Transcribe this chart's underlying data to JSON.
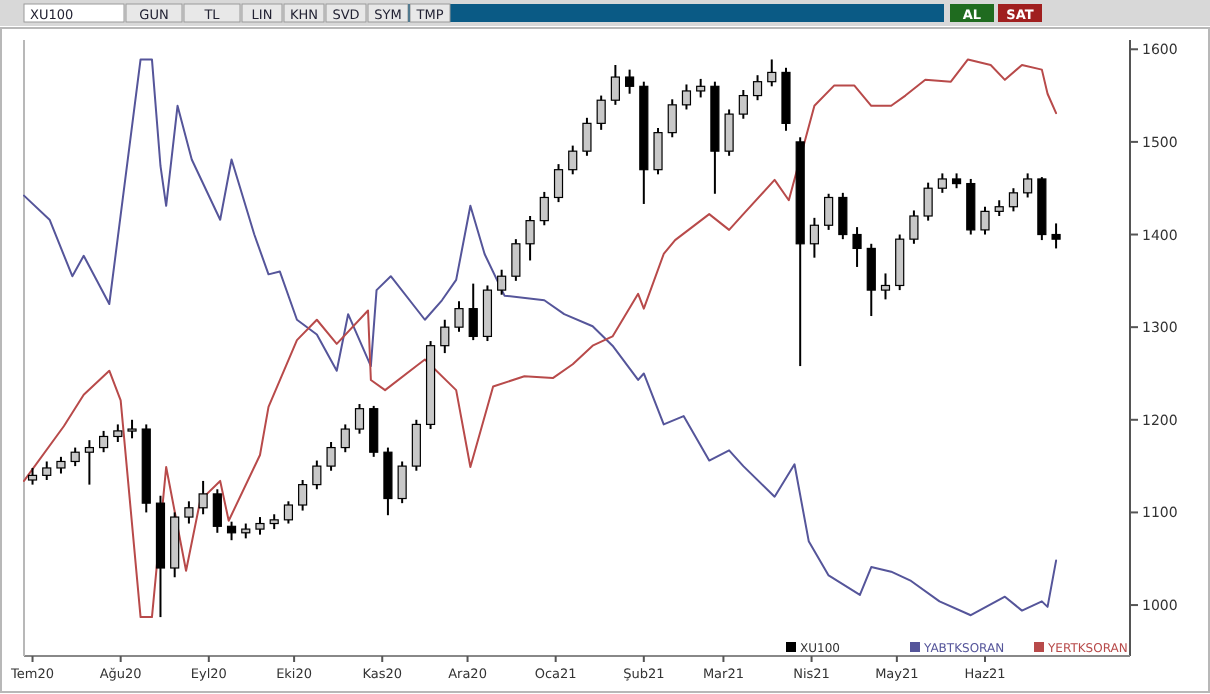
{
  "chart_data": {
    "type": "candlestick",
    "legend": "bottom",
    "marker": "none",
    "line_style": "solid",
    "annotations": [
      "XU100",
      "GUN",
      "TL",
      "LIN",
      "KHN",
      "SVD",
      "SYM",
      "TMP",
      "AL",
      "SAT"
    ],
    "xlim": [
      "2020-06-28",
      "2021-07-22"
    ],
    "xticks": [
      {
        "value": "2020-07-01",
        "label": "Tem20"
      },
      {
        "value": "2020-08-01",
        "label": "Ağu20"
      },
      {
        "value": "2020-09-01",
        "label": "Eyl20"
      },
      {
        "value": "2020-10-01",
        "label": "Eki20"
      },
      {
        "value": "2020-11-01",
        "label": "Kas20"
      },
      {
        "value": "2020-12-01",
        "label": "Ara20"
      },
      {
        "value": "2021-01-01",
        "label": "Oca21"
      },
      {
        "value": "2021-02-01",
        "label": "Şub21"
      },
      {
        "value": "2021-03-01",
        "label": "Mar21"
      },
      {
        "value": "2021-04-01",
        "label": "Nis21"
      },
      {
        "value": "2021-05-01",
        "label": "May21"
      },
      {
        "value": "2021-06-01",
        "label": "Haz21"
      }
    ],
    "ylim": [
      945,
      1610
    ],
    "yticks": [
      1000,
      1100,
      1200,
      1300,
      1400,
      1500,
      1600
    ],
    "series": [
      {
        "name": "XU100",
        "color": "#000000",
        "x": [
          "2020-07-01",
          "2020-07-06",
          "2020-07-11",
          "2020-07-16",
          "2020-07-21",
          "2020-07-26",
          "2020-07-31",
          "2020-08-05",
          "2020-08-10",
          "2020-08-15",
          "2020-08-20",
          "2020-08-25",
          "2020-08-30",
          "2020-09-04",
          "2020-09-09",
          "2020-09-14",
          "2020-09-19",
          "2020-09-24",
          "2020-09-29",
          "2020-10-04",
          "2020-10-09",
          "2020-10-14",
          "2020-10-19",
          "2020-10-24",
          "2020-10-29",
          "2020-11-03",
          "2020-11-08",
          "2020-11-13",
          "2020-11-18",
          "2020-11-23",
          "2020-11-28",
          "2020-12-03",
          "2020-12-08",
          "2020-12-13",
          "2020-12-18",
          "2020-12-23",
          "2020-12-28",
          "2021-01-02",
          "2021-01-07",
          "2021-01-12",
          "2021-01-17",
          "2021-01-22",
          "2021-01-27",
          "2021-02-01",
          "2021-02-06",
          "2021-02-11",
          "2021-02-16",
          "2021-02-21",
          "2021-02-26",
          "2021-03-03",
          "2021-03-08",
          "2021-03-13",
          "2021-03-18",
          "2021-03-23",
          "2021-03-28",
          "2021-04-02",
          "2021-04-07",
          "2021-04-12",
          "2021-04-17",
          "2021-04-22",
          "2021-04-27",
          "2021-05-02",
          "2021-05-07",
          "2021-05-12",
          "2021-05-17",
          "2021-05-22",
          "2021-05-27",
          "2021-06-01",
          "2021-06-06",
          "2021-06-11",
          "2021-06-16",
          "2021-06-21",
          "2021-06-26"
        ],
        "ohlc": [
          [
            1135,
            1148,
            1130,
            1140
          ],
          [
            1140,
            1155,
            1135,
            1148
          ],
          [
            1148,
            1160,
            1142,
            1155
          ],
          [
            1155,
            1170,
            1150,
            1165
          ],
          [
            1165,
            1178,
            1130,
            1170
          ],
          [
            1170,
            1188,
            1165,
            1182
          ],
          [
            1182,
            1195,
            1176,
            1188
          ],
          [
            1188,
            1200,
            1180,
            1190
          ],
          [
            1190,
            1195,
            1100,
            1110
          ],
          [
            1110,
            1118,
            987,
            1040
          ],
          [
            1040,
            1100,
            1030,
            1095
          ],
          [
            1095,
            1112,
            1088,
            1105
          ],
          [
            1105,
            1134,
            1098,
            1120
          ],
          [
            1120,
            1125,
            1078,
            1085
          ],
          [
            1085,
            1090,
            1070,
            1078
          ],
          [
            1078,
            1088,
            1072,
            1082
          ],
          [
            1082,
            1095,
            1076,
            1088
          ],
          [
            1088,
            1098,
            1082,
            1092
          ],
          [
            1092,
            1112,
            1088,
            1108
          ],
          [
            1108,
            1135,
            1102,
            1130
          ],
          [
            1130,
            1156,
            1125,
            1150
          ],
          [
            1150,
            1176,
            1145,
            1170
          ],
          [
            1170,
            1195,
            1165,
            1190
          ],
          [
            1190,
            1217,
            1185,
            1212
          ],
          [
            1212,
            1215,
            1160,
            1165
          ],
          [
            1165,
            1170,
            1097,
            1115
          ],
          [
            1115,
            1155,
            1110,
            1150
          ],
          [
            1150,
            1200,
            1145,
            1195
          ],
          [
            1195,
            1285,
            1190,
            1280
          ],
          [
            1280,
            1308,
            1272,
            1300
          ],
          [
            1300,
            1328,
            1295,
            1320
          ],
          [
            1320,
            1347,
            1286,
            1290
          ],
          [
            1290,
            1345,
            1285,
            1340
          ],
          [
            1340,
            1362,
            1335,
            1355
          ],
          [
            1355,
            1395,
            1350,
            1390
          ],
          [
            1390,
            1420,
            1372,
            1415
          ],
          [
            1415,
            1446,
            1410,
            1440
          ],
          [
            1440,
            1476,
            1435,
            1470
          ],
          [
            1470,
            1496,
            1465,
            1490
          ],
          [
            1490,
            1526,
            1485,
            1520
          ],
          [
            1520,
            1550,
            1513,
            1545
          ],
          [
            1545,
            1583,
            1540,
            1570
          ],
          [
            1570,
            1578,
            1552,
            1560
          ],
          [
            1560,
            1565,
            1433,
            1470
          ],
          [
            1470,
            1515,
            1465,
            1510
          ],
          [
            1510,
            1546,
            1505,
            1540
          ],
          [
            1540,
            1562,
            1535,
            1555
          ],
          [
            1555,
            1568,
            1548,
            1560
          ],
          [
            1560,
            1565,
            1444,
            1490
          ],
          [
            1490,
            1535,
            1485,
            1530
          ],
          [
            1530,
            1556,
            1525,
            1550
          ],
          [
            1550,
            1572,
            1545,
            1565
          ],
          [
            1565,
            1589,
            1560,
            1575
          ],
          [
            1575,
            1580,
            1512,
            1520
          ],
          [
            1500,
            1505,
            1258,
            1390
          ],
          [
            1390,
            1418,
            1375,
            1410
          ],
          [
            1410,
            1444,
            1405,
            1440
          ],
          [
            1440,
            1445,
            1395,
            1400
          ],
          [
            1400,
            1408,
            1365,
            1385
          ],
          [
            1385,
            1390,
            1312,
            1340
          ],
          [
            1340,
            1358,
            1330,
            1345
          ],
          [
            1345,
            1400,
            1340,
            1395
          ],
          [
            1395,
            1426,
            1390,
            1420
          ],
          [
            1420,
            1456,
            1415,
            1450
          ],
          [
            1450,
            1466,
            1445,
            1460
          ],
          [
            1460,
            1466,
            1450,
            1455
          ],
          [
            1455,
            1460,
            1400,
            1405
          ],
          [
            1405,
            1430,
            1400,
            1425
          ],
          [
            1425,
            1437,
            1420,
            1430
          ],
          [
            1430,
            1450,
            1425,
            1445
          ],
          [
            1445,
            1466,
            1440,
            1460
          ],
          [
            1460,
            1462,
            1394,
            1400
          ],
          [
            1400,
            1412,
            1385,
            1395
          ]
        ]
      },
      {
        "name": "YABTKSORAN",
        "type": "line",
        "color": "#55559a",
        "x": [
          "2020-06-28",
          "2020-07-07",
          "2020-07-15",
          "2020-07-19",
          "2020-07-28",
          "2020-08-08",
          "2020-08-12",
          "2020-08-15",
          "2020-08-17",
          "2020-08-21",
          "2020-08-26",
          "2020-09-05",
          "2020-09-09",
          "2020-09-17",
          "2020-09-22",
          "2020-09-26",
          "2020-10-02",
          "2020-10-09",
          "2020-10-16",
          "2020-10-20",
          "2020-10-28",
          "2020-10-30",
          "2020-11-04",
          "2020-11-16",
          "2020-11-22",
          "2020-11-27",
          "2020-12-02",
          "2020-12-07",
          "2020-12-14",
          "2020-12-28",
          "2021-01-04",
          "2021-01-14",
          "2021-01-21",
          "2021-01-30",
          "2021-02-01",
          "2021-02-08",
          "2021-02-15",
          "2021-02-24",
          "2021-03-03",
          "2021-03-08",
          "2021-03-19",
          "2021-03-26",
          "2021-03-31",
          "2021-04-07",
          "2021-04-18",
          "2021-04-22",
          "2021-04-29",
          "2021-05-06",
          "2021-05-16",
          "2021-05-27",
          "2021-06-08",
          "2021-06-14",
          "2021-06-21",
          "2021-06-23",
          "2021-06-26"
        ],
        "values": [
          1442,
          1416,
          1355,
          1377,
          1325,
          1589,
          1589,
          1474,
          1431,
          1539,
          1481,
          1416,
          1481,
          1400,
          1357,
          1360,
          1308,
          1292,
          1253,
          1314,
          1258,
          1340,
          1355,
          1308,
          1329,
          1351,
          1431,
          1379,
          1334,
          1329,
          1314,
          1301,
          1280,
          1243,
          1250,
          1195,
          1204,
          1156,
          1167,
          1150,
          1117,
          1152,
          1069,
          1032,
          1011,
          1041,
          1036,
          1026,
          1004,
          989,
          1009,
          994,
          1004,
          998,
          1048
        ]
      },
      {
        "name": "YERTKSORAN",
        "type": "line",
        "color": "#b84a4a",
        "x": [
          "2020-06-28",
          "2020-07-12",
          "2020-07-19",
          "2020-07-28",
          "2020-08-01",
          "2020-08-08",
          "2020-08-12",
          "2020-08-17",
          "2020-08-24",
          "2020-08-29",
          "2020-09-05",
          "2020-09-08",
          "2020-09-19",
          "2020-09-22",
          "2020-10-02",
          "2020-10-09",
          "2020-10-16",
          "2020-10-27",
          "2020-10-28",
          "2020-11-02",
          "2020-11-13",
          "2020-11-16",
          "2020-11-27",
          "2020-12-02",
          "2020-12-10",
          "2020-12-21",
          "2020-12-31",
          "2021-01-07",
          "2021-01-14",
          "2021-01-21",
          "2021-01-30",
          "2021-02-01",
          "2021-02-08",
          "2021-02-12",
          "2021-02-24",
          "2021-03-03",
          "2021-03-08",
          "2021-03-19",
          "2021-03-24",
          "2021-04-02",
          "2021-04-09",
          "2021-04-16",
          "2021-04-22",
          "2021-04-29",
          "2021-05-04",
          "2021-05-11",
          "2021-05-20",
          "2021-05-26",
          "2021-06-03",
          "2021-06-08",
          "2021-06-14",
          "2021-06-21",
          "2021-06-23",
          "2021-06-26"
        ],
        "values": [
          1134,
          1193,
          1227,
          1253,
          1221,
          987,
          987,
          1149,
          1037,
          1113,
          1134,
          1091,
          1162,
          1214,
          1286,
          1308,
          1282,
          1318,
          1243,
          1232,
          1258,
          1265,
          1232,
          1149,
          1236,
          1247,
          1245,
          1260,
          1280,
          1290,
          1336,
          1320,
          1379,
          1394,
          1422,
          1405,
          1422,
          1459,
          1437,
          1539,
          1561,
          1561,
          1539,
          1539,
          1550,
          1567,
          1565,
          1589,
          1583,
          1567,
          1583,
          1578,
          1552,
          1531
        ]
      }
    ]
  }
}
